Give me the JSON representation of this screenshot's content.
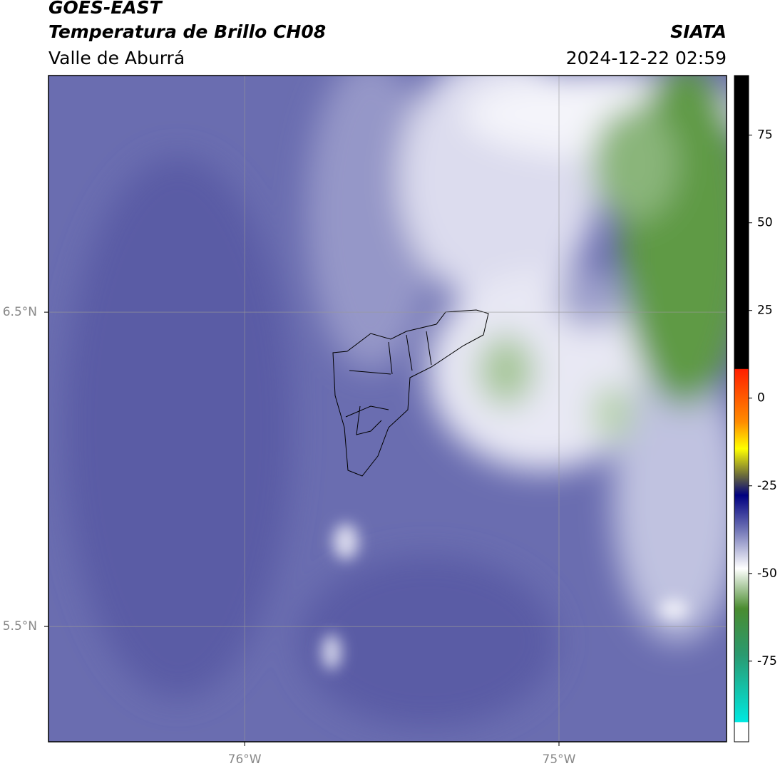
{
  "header": {
    "title": "GOES-EAST",
    "subtitle": "Temperatura de Brillo CH08",
    "region": "Valle de Aburrá",
    "source": "SIATA",
    "datetime": "2024-12-22 02:59"
  },
  "map": {
    "xlim": [
      -76.624,
      -74.467
    ],
    "ylim": [
      5.133,
      7.253
    ],
    "xticks": [
      {
        "value": -76,
        "label": "76°W"
      },
      {
        "value": -75,
        "label": "75°W"
      }
    ],
    "yticks": [
      {
        "value": 6.5,
        "label": "6.5°N"
      },
      {
        "value": 5.5,
        "label": "5.5°N"
      }
    ],
    "grid": true
  },
  "colorbar": {
    "lim": [
      -98,
      92
    ],
    "ticks": [
      75,
      50,
      25,
      0,
      -25,
      -50,
      -75
    ]
  }
}
